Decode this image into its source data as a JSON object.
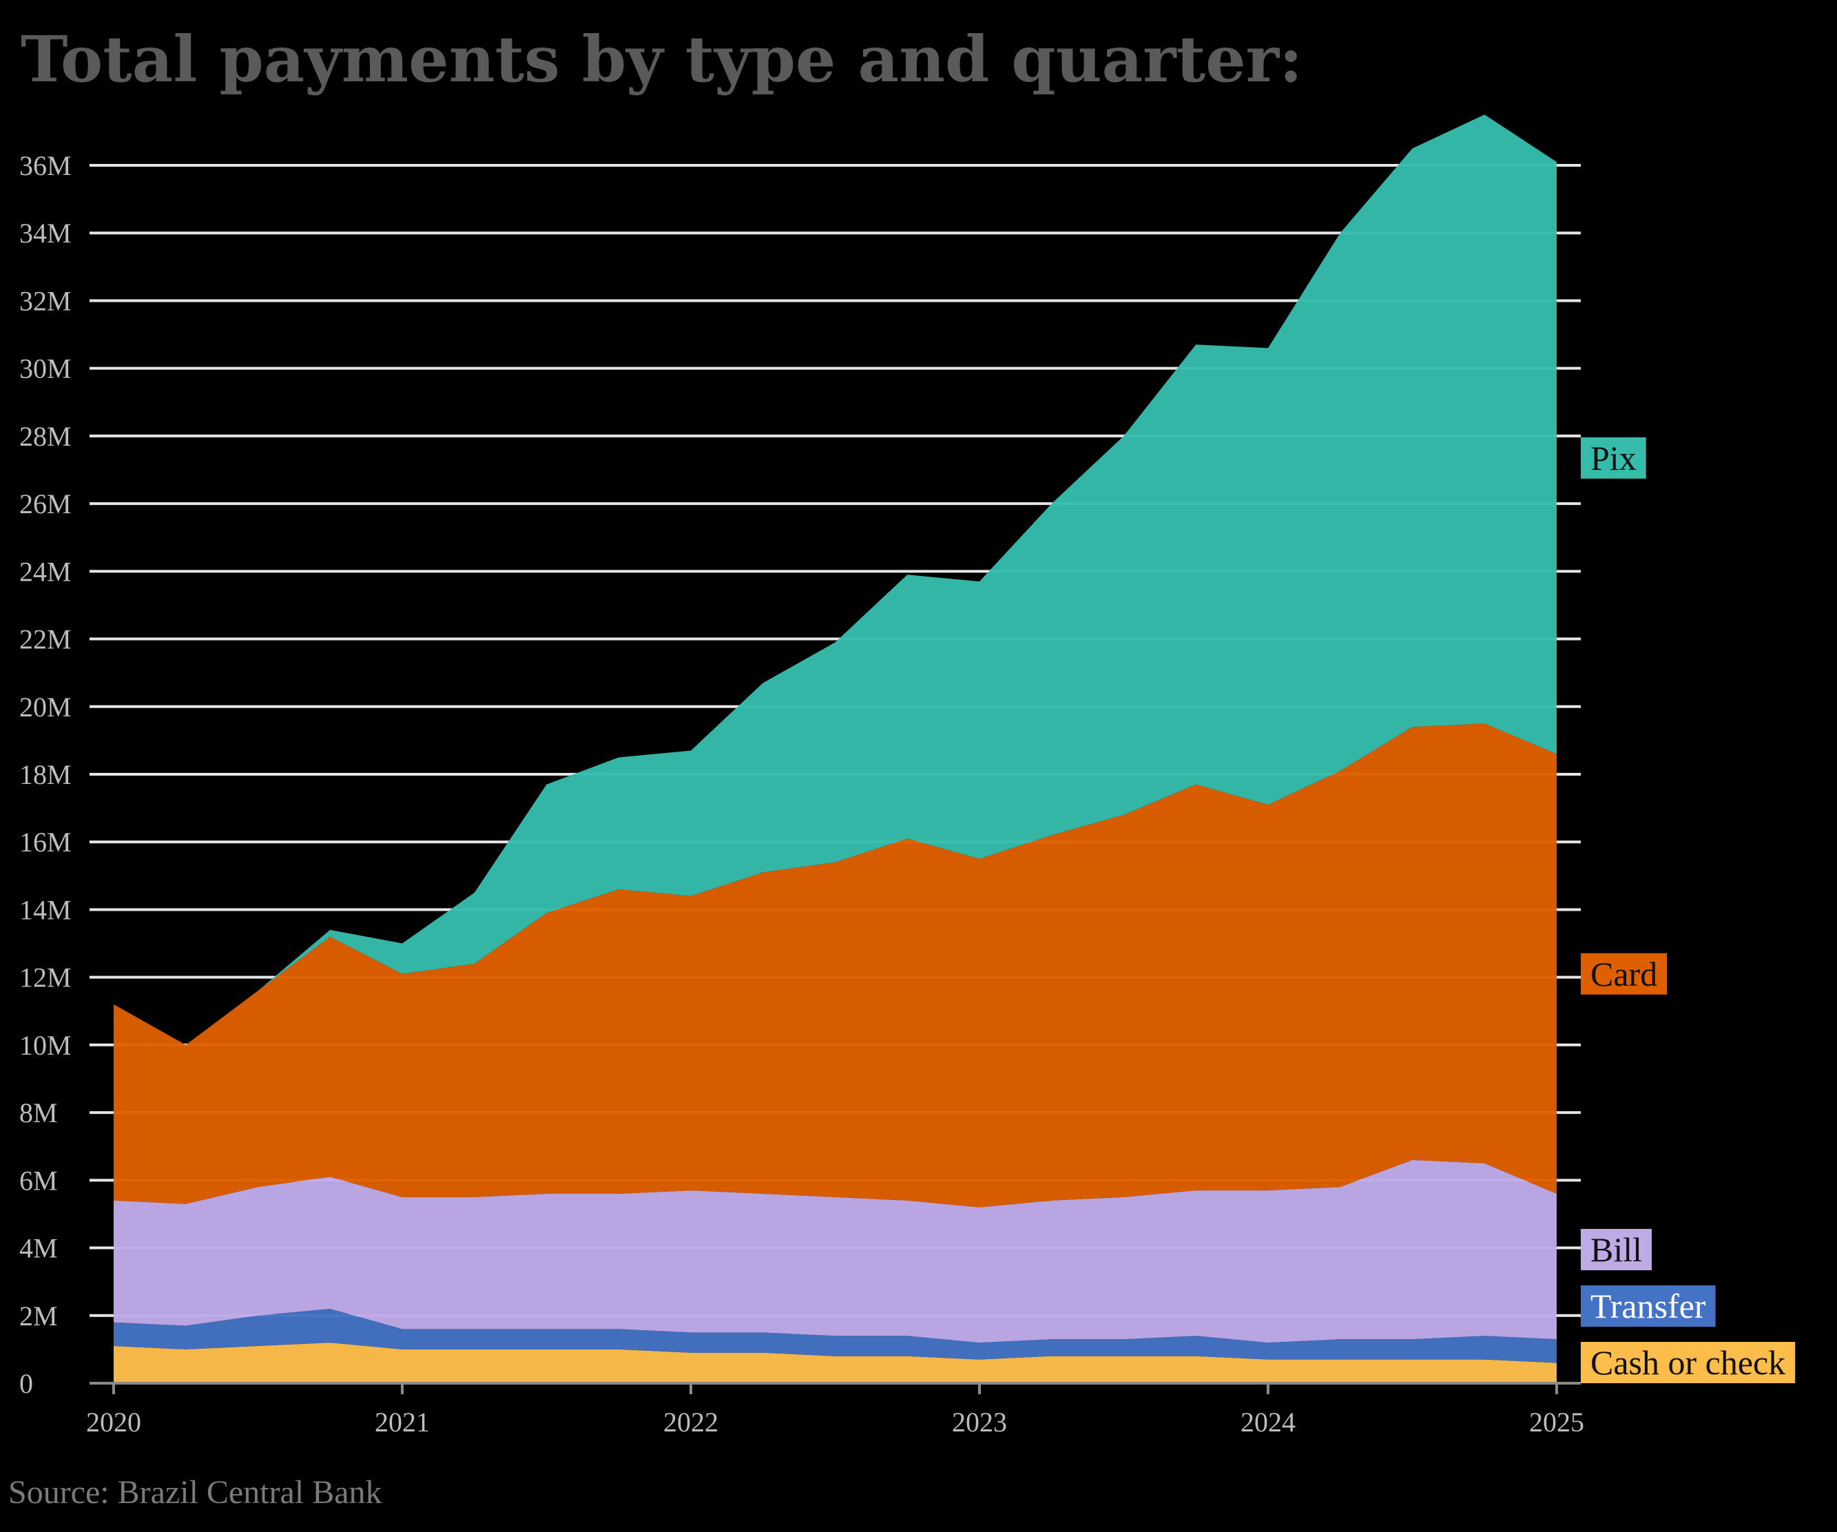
{
  "chart_data": {
    "type": "area",
    "stacked": true,
    "title": "Total payments by type and quarter:",
    "source": "Source: Brazil Central Bank",
    "xlabel": "",
    "ylabel": "",
    "x_ticks": [
      "2020",
      "2021",
      "2022",
      "2023",
      "2024",
      "2025"
    ],
    "x": [
      2020.0,
      2020.25,
      2020.5,
      2020.75,
      2021.0,
      2021.25,
      2021.5,
      2021.75,
      2022.0,
      2022.25,
      2022.5,
      2022.75,
      2023.0,
      2023.25,
      2023.5,
      2023.75,
      2024.0,
      2024.25,
      2024.5,
      2024.75,
      2025.0
    ],
    "xlim": [
      2020,
      2025
    ],
    "ylim": [
      0,
      36
    ],
    "y_unit": "M",
    "y_ticks": [
      0,
      2,
      4,
      6,
      8,
      10,
      12,
      14,
      16,
      18,
      20,
      22,
      24,
      26,
      28,
      30,
      32,
      34,
      36
    ],
    "y_tick_labels": [
      "0",
      "2M",
      "4M",
      "6M",
      "8M",
      "10M",
      "12M",
      "14M",
      "16M",
      "18M",
      "20M",
      "22M",
      "24M",
      "26M",
      "28M",
      "30M",
      "32M",
      "34M",
      "36M"
    ],
    "grid": true,
    "legend": "direct labels at right",
    "series": [
      {
        "name": "Cash or check",
        "color": "#fdbd4a",
        "values": [
          1.1,
          1.0,
          1.1,
          1.2,
          1.0,
          1.0,
          1.0,
          1.0,
          0.9,
          0.9,
          0.8,
          0.8,
          0.7,
          0.8,
          0.8,
          0.8,
          0.7,
          0.7,
          0.7,
          0.7,
          0.6
        ]
      },
      {
        "name": "Transfer",
        "color": "#4472c4",
        "values": [
          0.7,
          0.7,
          0.9,
          1.0,
          0.6,
          0.6,
          0.6,
          0.6,
          0.6,
          0.6,
          0.6,
          0.6,
          0.5,
          0.5,
          0.5,
          0.6,
          0.5,
          0.6,
          0.6,
          0.7,
          0.7
        ]
      },
      {
        "name": "Bill",
        "color": "#bfaae8",
        "values": [
          3.6,
          3.6,
          3.8,
          3.9,
          3.9,
          3.9,
          4.0,
          4.0,
          4.2,
          4.1,
          4.1,
          4.0,
          4.0,
          4.1,
          4.2,
          4.3,
          4.5,
          4.5,
          5.3,
          5.1,
          4.3
        ]
      },
      {
        "name": "Card",
        "color": "#de5f00",
        "values": [
          5.8,
          4.7,
          5.8,
          7.1,
          6.6,
          6.9,
          8.3,
          9.0,
          8.7,
          9.5,
          9.9,
          10.7,
          10.3,
          10.8,
          11.3,
          12.0,
          11.4,
          12.3,
          12.8,
          13.0,
          13.0
        ]
      },
      {
        "name": "Pix",
        "color": "#35bcaa",
        "values": [
          0,
          0,
          0,
          0.2,
          0.9,
          2.1,
          3.8,
          3.9,
          4.3,
          5.6,
          6.5,
          7.8,
          8.2,
          9.8,
          11.2,
          13.0,
          13.5,
          15.9,
          17.1,
          18.0,
          17.5
        ]
      }
    ]
  }
}
